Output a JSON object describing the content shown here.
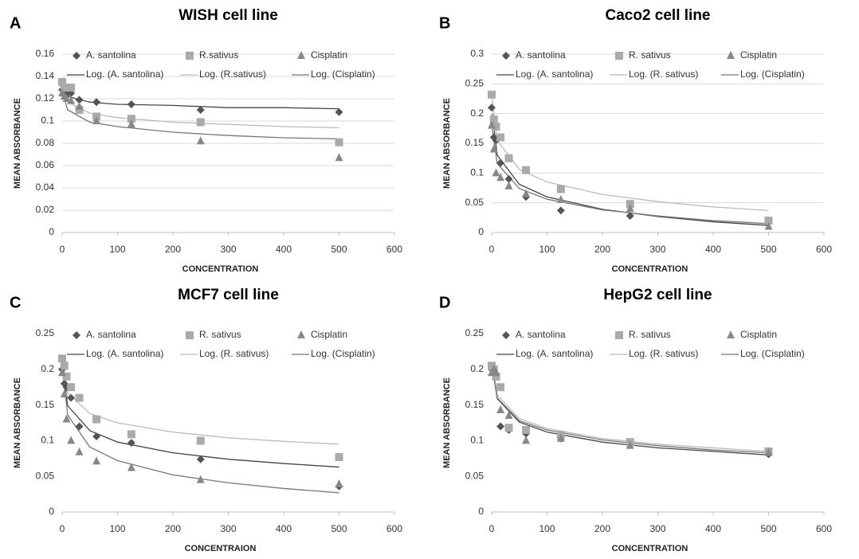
{
  "chart_data": [
    {
      "type": "scatter",
      "panel_label": "A",
      "title": "WISH cell line",
      "x_label": "CONCENTRATION",
      "y_label": "MEAN ABSORBANCE",
      "x": [
        0,
        4,
        8,
        16,
        31,
        62,
        125,
        250,
        500
      ],
      "series": [
        {
          "name": "A. santolina",
          "color": "#555555",
          "marker": "diamond",
          "values": [
            0.128,
            0.125,
            0.124,
            0.125,
            0.119,
            0.117,
            0.115,
            0.11,
            0.108
          ]
        },
        {
          "name": "R.sativus",
          "color": "#aaaaaa",
          "marker": "square",
          "values": [
            0.135,
            0.13,
            0.13,
            0.13,
            0.11,
            0.104,
            0.102,
            0.099,
            0.081
          ]
        },
        {
          "name": "Cisplatin",
          "color": "#888888",
          "marker": "triangle",
          "values": [
            0.125,
            0.122,
            0.12,
            0.118,
            0.113,
            0.1,
            0.097,
            0.082,
            0.067
          ]
        }
      ],
      "trendlines": [
        {
          "name": "Log. (A. santolina)",
          "color": "#444444",
          "x": [
            1,
            10,
            50,
            100,
            200,
            300,
            400,
            500
          ],
          "values": [
            0.128,
            0.122,
            0.117,
            0.115,
            0.114,
            0.112,
            0.112,
            0.111
          ]
        },
        {
          "name": "Log. (R.sativus)",
          "color": "#bbbbbb",
          "x": [
            1,
            10,
            50,
            100,
            200,
            300,
            400,
            500
          ],
          "values": [
            0.13,
            0.117,
            0.107,
            0.103,
            0.099,
            0.097,
            0.095,
            0.094
          ]
        },
        {
          "name": "Log. (Cisplatin)",
          "color": "#777777",
          "x": [
            1,
            10,
            50,
            100,
            200,
            300,
            400,
            500
          ],
          "values": [
            0.125,
            0.11,
            0.099,
            0.095,
            0.09,
            0.087,
            0.085,
            0.084
          ]
        }
      ],
      "xlim": [
        0,
        600
      ],
      "xticks": [
        0,
        100,
        200,
        300,
        400,
        500,
        600
      ],
      "ylim": [
        0,
        0.16
      ],
      "yticks": [
        0,
        0.02,
        0.04,
        0.06,
        0.08,
        0.1,
        0.12,
        0.14,
        0.16
      ],
      "grid": true
    },
    {
      "type": "scatter",
      "panel_label": "B",
      "title": "Caco2 cell line",
      "x_label": "CONCENTRATION",
      "y_label": "MEAN ABSORBANCE",
      "x": [
        0,
        4,
        8,
        16,
        31,
        62,
        125,
        250,
        500
      ],
      "series": [
        {
          "name": "A. santolina",
          "color": "#555555",
          "marker": "diamond",
          "values": [
            0.21,
            0.16,
            0.155,
            0.117,
            0.09,
            0.06,
            0.037,
            0.028,
            0.02
          ]
        },
        {
          "name": "R. sativus",
          "color": "#aaaaaa",
          "marker": "square",
          "values": [
            0.232,
            0.19,
            0.178,
            0.16,
            0.125,
            0.105,
            0.073,
            0.048,
            0.02
          ]
        },
        {
          "name": "Cisplatin",
          "color": "#888888",
          "marker": "triangle",
          "values": [
            0.18,
            0.14,
            0.1,
            0.092,
            0.078,
            0.065,
            0.055,
            0.04,
            0.01
          ]
        }
      ],
      "trendlines": [
        {
          "name": "Log. (A. santolina)",
          "color": "#444444",
          "x": [
            1,
            10,
            50,
            100,
            200,
            300,
            400,
            500
          ],
          "values": [
            0.2,
            0.13,
            0.081,
            0.06,
            0.039,
            0.027,
            0.018,
            0.012
          ]
        },
        {
          "name": "Log. (R. sativus)",
          "color": "#bbbbbb",
          "x": [
            1,
            10,
            50,
            100,
            200,
            300,
            400,
            500
          ],
          "values": [
            0.225,
            0.155,
            0.106,
            0.085,
            0.064,
            0.052,
            0.043,
            0.037
          ]
        },
        {
          "name": "Log. (Cisplatin)",
          "color": "#777777",
          "x": [
            1,
            10,
            50,
            100,
            200,
            300,
            400,
            500
          ],
          "values": [
            0.175,
            0.116,
            0.074,
            0.056,
            0.038,
            0.028,
            0.02,
            0.015
          ]
        }
      ],
      "xlim": [
        0,
        600
      ],
      "xticks": [
        0,
        100,
        200,
        300,
        400,
        500,
        600
      ],
      "ylim": [
        0,
        0.3
      ],
      "yticks": [
        0,
        0.05,
        0.1,
        0.15,
        0.2,
        0.25,
        0.3
      ],
      "grid": true
    },
    {
      "type": "scatter",
      "panel_label": "C",
      "title": "MCF7 cell line",
      "x_label": "CONCENTRAION",
      "y_label": "MEAN ABSORBANCE",
      "x": [
        0,
        4,
        8,
        16,
        31,
        62,
        125,
        250,
        500
      ],
      "series": [
        {
          "name": "A. santolina",
          "color": "#555555",
          "marker": "diamond",
          "values": [
            0.2,
            0.18,
            0.175,
            0.16,
            0.12,
            0.106,
            0.097,
            0.074,
            0.036
          ]
        },
        {
          "name": "R. sativus",
          "color": "#aaaaaa",
          "marker": "square",
          "values": [
            0.215,
            0.205,
            0.19,
            0.175,
            0.16,
            0.13,
            0.109,
            0.1,
            0.077
          ]
        },
        {
          "name": "Cisplatin",
          "color": "#888888",
          "marker": "triangle",
          "values": [
            0.195,
            0.165,
            0.13,
            0.1,
            0.084,
            0.071,
            0.062,
            0.045,
            0.039
          ]
        }
      ],
      "trendlines": [
        {
          "name": "Log. (A. santolina)",
          "color": "#444444",
          "x": [
            1,
            10,
            50,
            100,
            200,
            300,
            400,
            500
          ],
          "values": [
            0.2,
            0.149,
            0.114,
            0.098,
            0.083,
            0.074,
            0.068,
            0.063
          ]
        },
        {
          "name": "Log. (R. sativus)",
          "color": "#bbbbbb",
          "x": [
            1,
            10,
            50,
            100,
            200,
            300,
            400,
            500
          ],
          "values": [
            0.21,
            0.167,
            0.138,
            0.125,
            0.112,
            0.104,
            0.099,
            0.095
          ]
        },
        {
          "name": "Log. (Cisplatin)",
          "color": "#777777",
          "x": [
            1,
            10,
            50,
            100,
            200,
            300,
            400,
            500
          ],
          "values": [
            0.2,
            0.136,
            0.091,
            0.072,
            0.052,
            0.041,
            0.033,
            0.027
          ]
        }
      ],
      "xlim": [
        0,
        600
      ],
      "xticks": [
        0,
        100,
        200,
        300,
        400,
        500,
        600
      ],
      "ylim": [
        0,
        0.25
      ],
      "yticks": [
        0,
        0.05,
        0.1,
        0.15,
        0.2,
        0.25
      ],
      "grid": false
    },
    {
      "type": "scatter",
      "panel_label": "D",
      "title": "HepG2 cell line",
      "x_label": "CONCENTRATION",
      "y_label": "MEAN ABSORBANCE",
      "x": [
        0,
        4,
        8,
        16,
        31,
        62,
        125,
        250,
        500
      ],
      "series": [
        {
          "name": "A. santolina",
          "color": "#555555",
          "marker": "diamond",
          "values": [
            0.2,
            0.195,
            0.19,
            0.12,
            0.115,
            0.11,
            0.103,
            0.095,
            0.081
          ]
        },
        {
          "name": "R. sativus",
          "color": "#aaaaaa",
          "marker": "square",
          "values": [
            0.205,
            0.2,
            0.19,
            0.175,
            0.118,
            0.115,
            0.108,
            0.098,
            0.085
          ]
        },
        {
          "name": "Cisplatin",
          "color": "#888888",
          "marker": "triangle",
          "values": [
            0.195,
            0.2,
            0.195,
            0.143,
            0.135,
            0.1,
            0.103,
            0.093,
            0.083
          ]
        }
      ],
      "trendlines": [
        {
          "name": "Log. (A. santolina)",
          "color": "#444444",
          "x": [
            1,
            10,
            50,
            100,
            200,
            300,
            400,
            500
          ],
          "values": [
            0.205,
            0.159,
            0.126,
            0.112,
            0.098,
            0.09,
            0.085,
            0.08
          ]
        },
        {
          "name": "Log. (R. sativus)",
          "color": "#bbbbbb",
          "x": [
            1,
            10,
            50,
            100,
            200,
            300,
            400,
            500
          ],
          "values": [
            0.21,
            0.164,
            0.131,
            0.117,
            0.103,
            0.095,
            0.09,
            0.085
          ]
        },
        {
          "name": "Log. (Cisplatin)",
          "color": "#777777",
          "x": [
            1,
            10,
            50,
            100,
            200,
            300,
            400,
            500
          ],
          "values": [
            0.205,
            0.16,
            0.128,
            0.115,
            0.101,
            0.093,
            0.087,
            0.083
          ]
        }
      ],
      "xlim": [
        0,
        600
      ],
      "xticks": [
        0,
        100,
        200,
        300,
        400,
        500,
        600
      ],
      "ylim": [
        0,
        0.25
      ],
      "yticks": [
        0,
        0.05,
        0.1,
        0.15,
        0.2,
        0.25
      ],
      "grid": false
    }
  ]
}
